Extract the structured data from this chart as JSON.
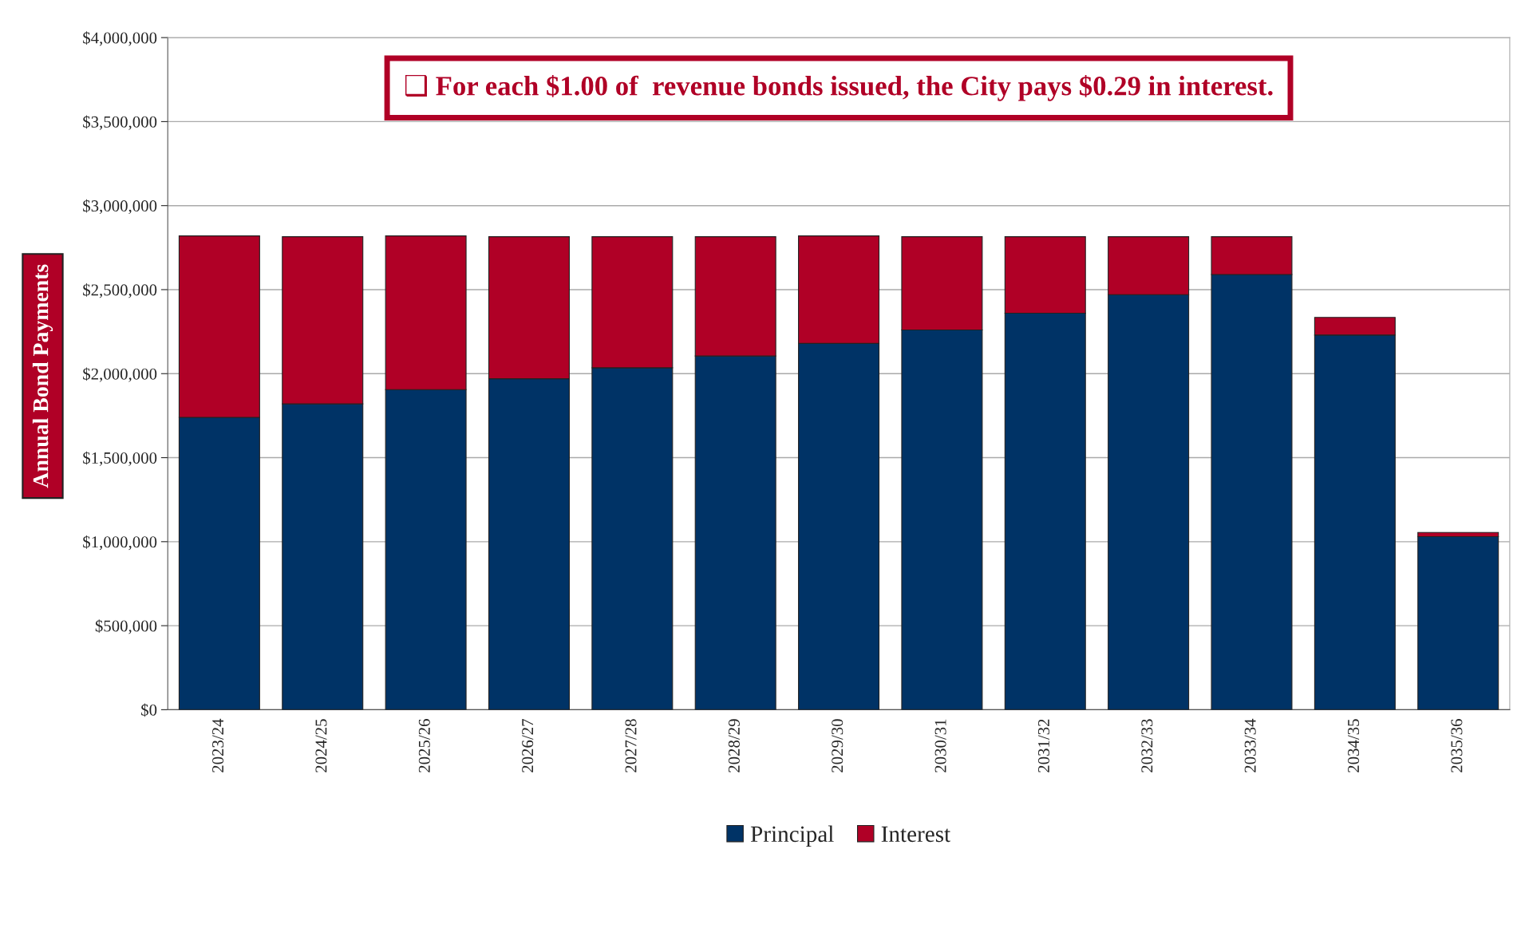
{
  "chart_data": {
    "type": "bar",
    "stacked": true,
    "ylabel": "Annual Bond Payments",
    "annotations": [
      "❑ For each $1.00 of  revenue bonds issued, the City pays $0.29 in interest."
    ],
    "categories": [
      "2023/24",
      "2024/25",
      "2025/26",
      "2026/27",
      "2027/28",
      "2028/29",
      "2029/30",
      "2030/31",
      "2031/32",
      "2032/33",
      "2033/34",
      "2034/35",
      "2035/36"
    ],
    "series": [
      {
        "name": "Principal",
        "color": "#003366",
        "values": [
          1740000,
          1820000,
          1905000,
          1970000,
          2035000,
          2105000,
          2180000,
          2260000,
          2360000,
          2470000,
          2590000,
          2230000,
          1030000
        ]
      },
      {
        "name": "Interest",
        "color": "#b00026",
        "values": [
          1080000,
          995000,
          915000,
          845000,
          780000,
          710000,
          640000,
          555000,
          455000,
          345000,
          225000,
          105000,
          25000
        ]
      }
    ],
    "ylim": [
      0,
      4000000
    ],
    "yticks": [
      {
        "value": 0,
        "label": "$0"
      },
      {
        "value": 500000,
        "label": "$500,000"
      },
      {
        "value": 1000000,
        "label": "$1,000,000"
      },
      {
        "value": 1500000,
        "label": "$1,500,000"
      },
      {
        "value": 2000000,
        "label": "$2,000,000"
      },
      {
        "value": 2500000,
        "label": "$2,500,000"
      },
      {
        "value": 3000000,
        "label": "$3,000,000"
      },
      {
        "value": 3500000,
        "label": "$3,500,000"
      },
      {
        "value": 4000000,
        "label": "$4,000,000"
      }
    ],
    "grid": "y",
    "legend": "bottom"
  }
}
